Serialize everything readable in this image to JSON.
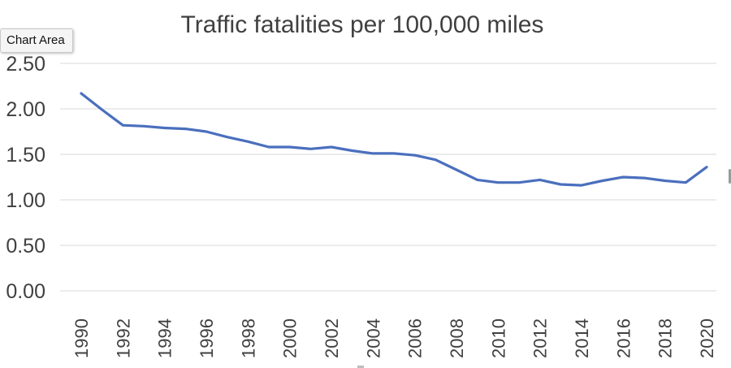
{
  "tooltip": {
    "label": "Chart Area"
  },
  "chart_data": {
    "type": "line",
    "title": "Traffic fatalities per 100,000 miles",
    "xlabel": "",
    "ylabel": "",
    "ylim": [
      0,
      2.5
    ],
    "yticks": [
      "0.00",
      "0.50",
      "1.00",
      "1.50",
      "2.00",
      "2.50"
    ],
    "xticks": [
      "1990",
      "1992",
      "1994",
      "1996",
      "1998",
      "2000",
      "2002",
      "2004",
      "2006",
      "2008",
      "2010",
      "2012",
      "2014",
      "2016",
      "2018",
      "2020"
    ],
    "grid": true,
    "legend": "none",
    "x": [
      1990,
      1991,
      1992,
      1993,
      1994,
      1995,
      1996,
      1997,
      1998,
      1999,
      2000,
      2001,
      2002,
      2003,
      2004,
      2005,
      2006,
      2007,
      2008,
      2009,
      2010,
      2011,
      2012,
      2013,
      2014,
      2015,
      2016,
      2017,
      2018,
      2019,
      2020
    ],
    "series": [
      {
        "values": [
          2.17,
          1.99,
          1.82,
          1.81,
          1.79,
          1.78,
          1.75,
          1.69,
          1.64,
          1.58,
          1.58,
          1.56,
          1.58,
          1.54,
          1.51,
          1.51,
          1.49,
          1.44,
          1.33,
          1.22,
          1.19,
          1.19,
          1.22,
          1.17,
          1.16,
          1.21,
          1.25,
          1.24,
          1.21,
          1.19,
          1.36
        ],
        "color": "#4a6fbd"
      }
    ]
  }
}
